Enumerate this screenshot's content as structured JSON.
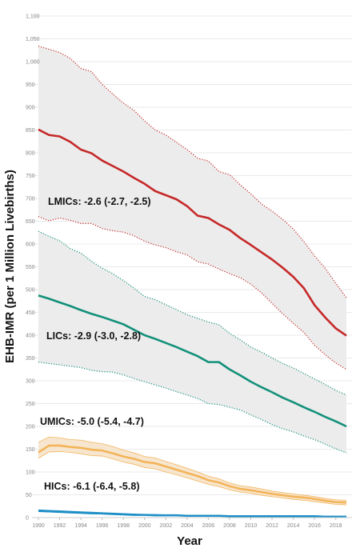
{
  "chart_data": {
    "type": "line",
    "title": "",
    "xlabel": "Year",
    "ylabel": "EHB-IMR (per 1 Million Livebirths)",
    "xlim": [
      1990,
      2019
    ],
    "ylim": [
      0,
      1100
    ],
    "grid": true,
    "x_ticks": [
      1990,
      1992,
      1994,
      1996,
      1998,
      2000,
      2002,
      2004,
      2006,
      2008,
      2010,
      2012,
      2014,
      2016,
      2018
    ],
    "x_tick_labels": [
      "1990",
      "1992",
      "1994",
      "1996",
      "1998",
      "2000",
      "2002",
      "2004",
      "2006",
      "2008",
      "2010",
      "2012",
      "2014",
      "2016",
      "2018"
    ],
    "y_ticks": [
      0,
      50,
      100,
      150,
      200,
      250,
      300,
      350,
      400,
      450,
      500,
      550,
      600,
      650,
      700,
      750,
      800,
      850,
      900,
      950,
      1000,
      1050,
      1100
    ],
    "y_tick_labels": [
      "0",
      "50",
      "100",
      "150",
      "200",
      "250",
      "300",
      "350",
      "400",
      "450",
      "500",
      "550",
      "600",
      "650",
      "700",
      "750",
      "800",
      "850",
      "900",
      "950",
      "1,000",
      "1,050",
      "1,100"
    ],
    "x": [
      1990,
      1991,
      1992,
      1993,
      1994,
      1995,
      1996,
      1997,
      1998,
      1999,
      2000,
      2001,
      2002,
      2003,
      2004,
      2005,
      2006,
      2007,
      2008,
      2009,
      2010,
      2011,
      2012,
      2013,
      2014,
      2015,
      2016,
      2017,
      2018,
      2019
    ],
    "series": [
      {
        "group": "LMICs",
        "color": "#c62828",
        "band_fill": "#ececec",
        "values": [
          851,
          839,
          836,
          824,
          807,
          799,
          783,
          771,
          759,
          745,
          732,
          716,
          707,
          698,
          683,
          662,
          657,
          643,
          631,
          613,
          598,
          582,
          566,
          548,
          528,
          503,
          466,
          439,
          415,
          399
        ],
        "lower": [
          660,
          651,
          657,
          652,
          645,
          645,
          634,
          629,
          626,
          618,
          606,
          598,
          592,
          583,
          576,
          561,
          556,
          545,
          535,
          526,
          512,
          493,
          470,
          447,
          426,
          406,
          378,
          357,
          339,
          325
        ],
        "upper": [
          1034,
          1027,
          1020,
          1007,
          985,
          978,
          950,
          929,
          909,
          893,
          870,
          850,
          839,
          823,
          807,
          788,
          782,
          759,
          752,
          730,
          710,
          688,
          672,
          654,
          633,
          605,
          574,
          547,
          514,
          482
        ]
      },
      {
        "group": "LICs",
        "color": "#12907a",
        "band_fill": "#ececec",
        "values": [
          487,
          480,
          472,
          464,
          455,
          447,
          440,
          432,
          424,
          412,
          400,
          392,
          383,
          374,
          364,
          354,
          341,
          341,
          325,
          312,
          298,
          286,
          275,
          263,
          253,
          242,
          232,
          221,
          211,
          200
        ],
        "lower": [
          341,
          338,
          335,
          332,
          329,
          323,
          320,
          319,
          313,
          305,
          298,
          291,
          284,
          276,
          269,
          261,
          250,
          248,
          242,
          236,
          225,
          215,
          204,
          195,
          188,
          179,
          171,
          161,
          151,
          142
        ],
        "upper": [
          628,
          617,
          607,
          590,
          580,
          562,
          547,
          535,
          520,
          503,
          485,
          478,
          467,
          456,
          445,
          437,
          429,
          423,
          404,
          390,
          374,
          363,
          350,
          338,
          328,
          316,
          304,
          292,
          279,
          269
        ]
      },
      {
        "group": "UMICs",
        "color": "#f3b45a",
        "band_fill": "#f7e6cf",
        "values": [
          143,
          158,
          158,
          155,
          153,
          149,
          147,
          141,
          134,
          129,
          122,
          119,
          112,
          105,
          98,
          91,
          82,
          77,
          69,
          63,
          60,
          56,
          52,
          49,
          46,
          44,
          41,
          37,
          34,
          33
        ],
        "lower": [
          130,
          144,
          145,
          143,
          140,
          136,
          135,
          129,
          122,
          117,
          110,
          107,
          100,
          94,
          87,
          80,
          73,
          68,
          61,
          56,
          53,
          49,
          46,
          43,
          40,
          38,
          35,
          32,
          29,
          28
        ],
        "upper": [
          165,
          177,
          175,
          171,
          170,
          165,
          162,
          156,
          148,
          142,
          134,
          131,
          123,
          116,
          108,
          100,
          91,
          85,
          76,
          70,
          67,
          63,
          58,
          55,
          52,
          49,
          46,
          42,
          39,
          38
        ]
      },
      {
        "group": "HICs",
        "color": "#1e8fc7",
        "band_fill": "#d6ebf5",
        "values": [
          15,
          14,
          13,
          12,
          11,
          10,
          9,
          8,
          7,
          6,
          6,
          5,
          5,
          5,
          4,
          4,
          4,
          4,
          3,
          3,
          3,
          3,
          3,
          3,
          3,
          3,
          3,
          2,
          2,
          2
        ],
        "lower": [
          13,
          12,
          11,
          10,
          9,
          8,
          8,
          7,
          6,
          5,
          5,
          4,
          4,
          4,
          3,
          3,
          3,
          3,
          2,
          2,
          2,
          2,
          2,
          2,
          2,
          2,
          2,
          2,
          2,
          2
        ],
        "upper": [
          17,
          16,
          15,
          14,
          13,
          12,
          11,
          10,
          9,
          8,
          7,
          7,
          6,
          6,
          5,
          5,
          5,
          5,
          4,
          4,
          4,
          4,
          4,
          4,
          4,
          4,
          4,
          3,
          3,
          3
        ]
      }
    ],
    "annotations": [
      {
        "text": "LMICs: -2.6 (-2.7, -2.5)"
      },
      {
        "text": "LICs: -2.9 (-3.0, -2.8)"
      },
      {
        "text": "UMICs: -5.0 (-5.4, -4.7)"
      },
      {
        "text": "HICs: -6.1 (-6.4, -5.8)"
      }
    ]
  }
}
